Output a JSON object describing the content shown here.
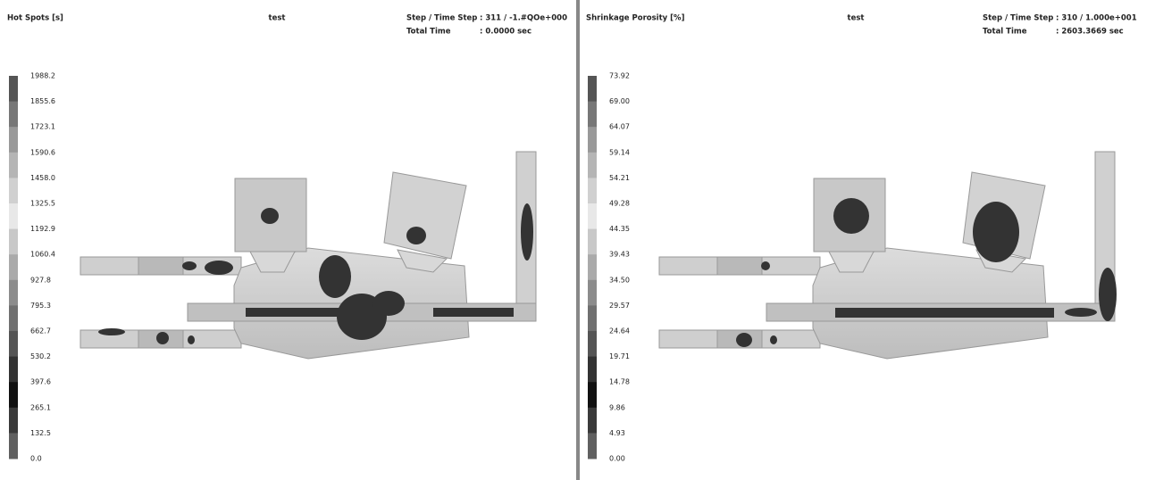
{
  "panels": [
    {
      "title": "Hot Spots [s]",
      "case": "test",
      "step_label": "Step / Time Step",
      "step_value": ": 311 / -1.#QOe+000",
      "time_label": "Total Time",
      "time_value": ": 0.0000 sec",
      "legend_labels": [
        "1988.2",
        "1855.6",
        "1723.1",
        "1590.6",
        "1458.0",
        "1325.5",
        "1192.9",
        "1060.4",
        "927.8",
        "795.3",
        "662.7",
        "530.2",
        "397.6",
        "265.1",
        "132.5",
        "0.0"
      ]
    },
    {
      "title": "Shrinkage Porosity [%]",
      "case": "test",
      "step_label": "Step / Time Step",
      "step_value": ": 310 / 1.000e+001",
      "time_label": "Total Time",
      "time_value": ": 2603.3669 sec",
      "legend_labels": [
        "73.92",
        "69.00",
        "64.07",
        "59.14",
        "54.21",
        "49.28",
        "44.35",
        "39.43",
        "34.50",
        "29.57",
        "24.64",
        "19.71",
        "14.78",
        "9.86",
        "4.93",
        "0.00"
      ]
    }
  ]
}
